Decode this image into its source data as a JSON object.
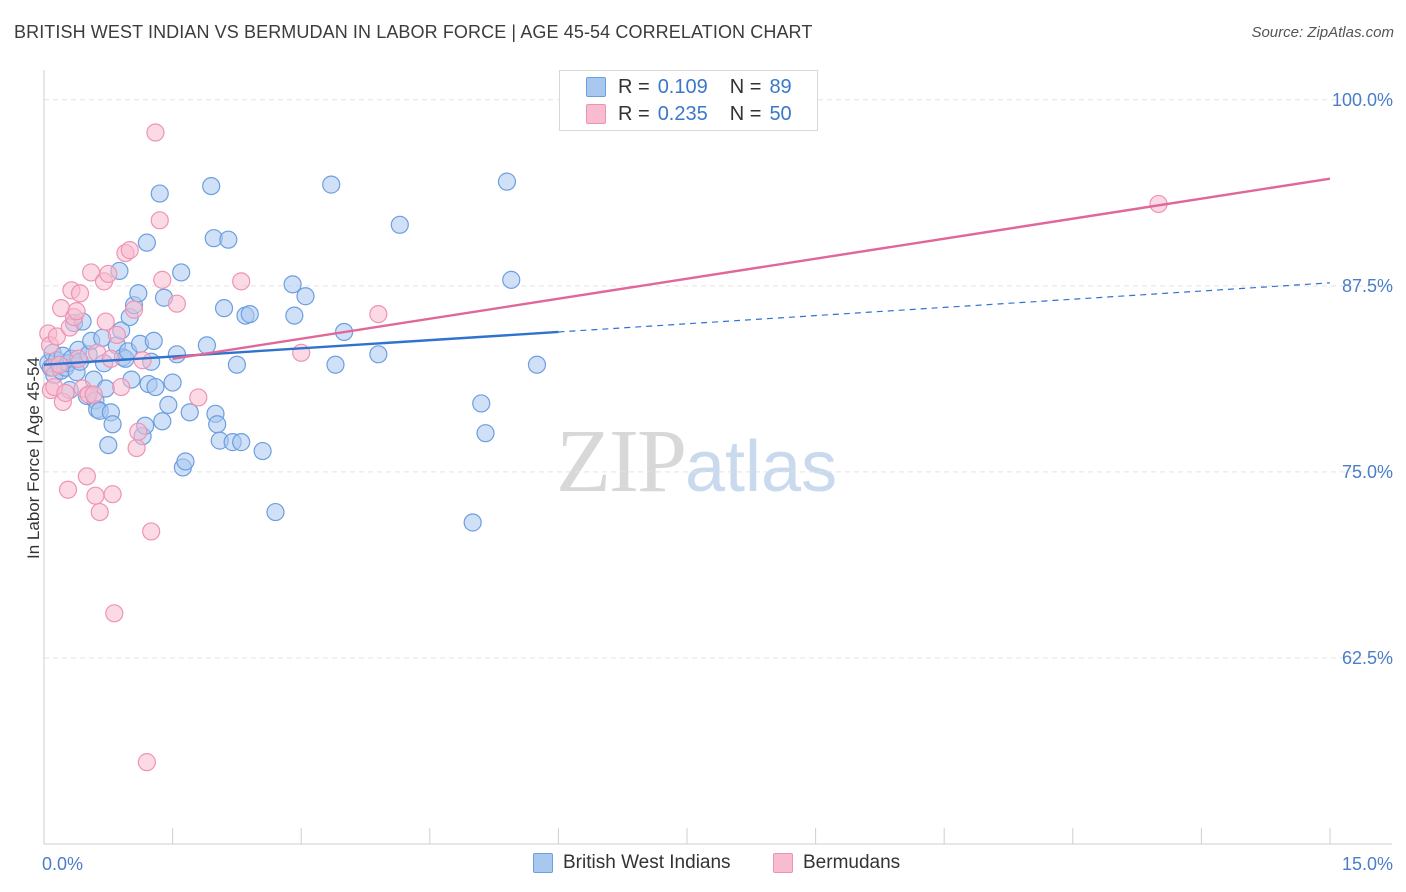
{
  "title": "BRITISH WEST INDIAN VS BERMUDAN IN LABOR FORCE | AGE 45-54 CORRELATION CHART",
  "source": "Source: ZipAtlas.com",
  "watermark": {
    "zip": "ZIP",
    "atlas": "atlas"
  },
  "legend": {
    "rows": [
      {
        "r_label": "R =",
        "r_value": "0.109",
        "n_label": "N =",
        "n_value": "89"
      },
      {
        "r_label": "R =",
        "r_value": "0.235",
        "n_label": "N =",
        "n_value": "50"
      }
    ]
  },
  "bottom_legend": [
    "British West Indians",
    "Bermudans"
  ],
  "colors": {
    "blue_fill": "#a9c8f0",
    "blue_stroke": "#6d9ee0",
    "blue_line": "#2f73cf",
    "pink_fill": "#f7bccf",
    "pink_stroke": "#ee94b3",
    "pink_line": "#e0679a",
    "tick_text": "#4a7ec9",
    "grid": "#e3e3e3"
  },
  "chart_data": {
    "type": "scatter",
    "title": "BRITISH WEST INDIAN VS BERMUDAN IN LABOR FORCE | AGE 45-54 CORRELATION CHART",
    "xlabel": "",
    "ylabel": "In Labor Force | Age 45-54",
    "xlim": [
      0,
      15
    ],
    "ylim": [
      50,
      102
    ],
    "x_tick_labels": [
      "0.0%",
      "15.0%"
    ],
    "y_ticks": [
      62.5,
      75.0,
      87.5,
      100.0
    ],
    "y_tick_labels": [
      "62.5%",
      "75.0%",
      "87.5%",
      "100.0%"
    ],
    "grid": true,
    "legend_position": "top-center",
    "series": [
      {
        "name": "British West Indians",
        "R": 0.109,
        "N": 89,
        "trend": {
          "x0": 0.0,
          "y0": 82.2,
          "x1": 6.0,
          "y1": 84.4,
          "dashed_to_x": 15.0,
          "dashed_to_y": 87.7
        },
        "points": [
          [
            0.05,
            82.3
          ],
          [
            0.08,
            82.0
          ],
          [
            0.1,
            83.0
          ],
          [
            0.12,
            81.5
          ],
          [
            0.15,
            82.5
          ],
          [
            0.18,
            82.2
          ],
          [
            0.2,
            81.8
          ],
          [
            0.22,
            82.8
          ],
          [
            0.25,
            82.0
          ],
          [
            0.28,
            82.3
          ],
          [
            0.3,
            80.5
          ],
          [
            0.32,
            82.6
          ],
          [
            0.35,
            85.0
          ],
          [
            0.38,
            81.7
          ],
          [
            0.4,
            83.2
          ],
          [
            0.42,
            82.4
          ],
          [
            0.45,
            85.1
          ],
          [
            0.5,
            80.1
          ],
          [
            0.52,
            82.9
          ],
          [
            0.55,
            83.8
          ],
          [
            0.58,
            81.2
          ],
          [
            0.6,
            79.8
          ],
          [
            0.62,
            79.2
          ],
          [
            0.65,
            79.1
          ],
          [
            0.68,
            84.0
          ],
          [
            0.7,
            82.3
          ],
          [
            0.72,
            80.6
          ],
          [
            0.75,
            76.8
          ],
          [
            0.78,
            79.0
          ],
          [
            0.8,
            78.2
          ],
          [
            0.85,
            83.5
          ],
          [
            0.88,
            88.5
          ],
          [
            0.9,
            84.5
          ],
          [
            0.92,
            82.7
          ],
          [
            0.95,
            82.6
          ],
          [
            0.98,
            83.1
          ],
          [
            1.0,
            85.4
          ],
          [
            1.02,
            81.2
          ],
          [
            1.05,
            86.2
          ],
          [
            1.1,
            87.0
          ],
          [
            1.12,
            83.6
          ],
          [
            1.15,
            77.4
          ],
          [
            1.18,
            78.1
          ],
          [
            1.2,
            90.4
          ],
          [
            1.22,
            80.9
          ],
          [
            1.25,
            82.4
          ],
          [
            1.28,
            83.8
          ],
          [
            1.3,
            80.7
          ],
          [
            1.35,
            93.7
          ],
          [
            1.38,
            78.4
          ],
          [
            1.4,
            86.7
          ],
          [
            1.45,
            79.5
          ],
          [
            1.5,
            81.0
          ],
          [
            1.55,
            82.9
          ],
          [
            1.6,
            88.4
          ],
          [
            1.62,
            75.3
          ],
          [
            1.65,
            75.7
          ],
          [
            1.7,
            79.0
          ],
          [
            1.9,
            83.5
          ],
          [
            1.95,
            94.2
          ],
          [
            1.98,
            90.7
          ],
          [
            2.0,
            78.9
          ],
          [
            2.02,
            78.2
          ],
          [
            2.05,
            77.1
          ],
          [
            2.1,
            86.0
          ],
          [
            2.15,
            90.6
          ],
          [
            2.2,
            77.0
          ],
          [
            2.25,
            82.2
          ],
          [
            2.3,
            77.0
          ],
          [
            2.35,
            85.5
          ],
          [
            2.4,
            85.6
          ],
          [
            2.55,
            76.4
          ],
          [
            2.7,
            72.3
          ],
          [
            2.9,
            87.6
          ],
          [
            2.92,
            85.5
          ],
          [
            3.05,
            86.8
          ],
          [
            3.35,
            94.3
          ],
          [
            3.4,
            82.2
          ],
          [
            3.5,
            84.4
          ],
          [
            3.9,
            82.9
          ],
          [
            4.15,
            91.6
          ],
          [
            5.0,
            71.6
          ],
          [
            5.1,
            79.6
          ],
          [
            5.15,
            77.6
          ],
          [
            5.4,
            94.5
          ],
          [
            5.45,
            87.9
          ],
          [
            5.75,
            82.2
          ]
        ]
      },
      {
        "name": "Bermudans",
        "R": 0.235,
        "N": 50,
        "trend": {
          "x0": 1.5,
          "y0": 82.6,
          "x1": 15.0,
          "y1": 94.7
        },
        "points": [
          [
            0.05,
            84.3
          ],
          [
            0.07,
            83.5
          ],
          [
            0.08,
            80.5
          ],
          [
            0.1,
            82.0
          ],
          [
            0.12,
            80.7
          ],
          [
            0.15,
            84.1
          ],
          [
            0.18,
            82.2
          ],
          [
            0.2,
            86.0
          ],
          [
            0.22,
            79.7
          ],
          [
            0.25,
            80.3
          ],
          [
            0.28,
            73.8
          ],
          [
            0.3,
            84.7
          ],
          [
            0.32,
            87.2
          ],
          [
            0.35,
            85.4
          ],
          [
            0.38,
            85.8
          ],
          [
            0.4,
            82.6
          ],
          [
            0.42,
            87.0
          ],
          [
            0.45,
            80.6
          ],
          [
            0.5,
            74.7
          ],
          [
            0.52,
            80.2
          ],
          [
            0.55,
            88.4
          ],
          [
            0.58,
            80.2
          ],
          [
            0.6,
            73.4
          ],
          [
            0.62,
            83.0
          ],
          [
            0.65,
            72.3
          ],
          [
            0.7,
            87.8
          ],
          [
            0.72,
            85.1
          ],
          [
            0.75,
            88.3
          ],
          [
            0.78,
            82.6
          ],
          [
            0.8,
            73.5
          ],
          [
            0.82,
            65.5
          ],
          [
            0.85,
            84.2
          ],
          [
            0.9,
            80.7
          ],
          [
            0.95,
            89.7
          ],
          [
            1.0,
            89.9
          ],
          [
            1.05,
            85.9
          ],
          [
            1.08,
            76.6
          ],
          [
            1.1,
            77.7
          ],
          [
            1.15,
            82.5
          ],
          [
            1.2,
            55.5
          ],
          [
            1.25,
            71.0
          ],
          [
            1.3,
            97.8
          ],
          [
            1.35,
            91.9
          ],
          [
            1.38,
            87.9
          ],
          [
            1.55,
            86.3
          ],
          [
            1.8,
            80.0
          ],
          [
            2.3,
            87.8
          ],
          [
            3.0,
            83.0
          ],
          [
            3.9,
            85.6
          ],
          [
            13.0,
            93.0
          ]
        ]
      }
    ]
  }
}
